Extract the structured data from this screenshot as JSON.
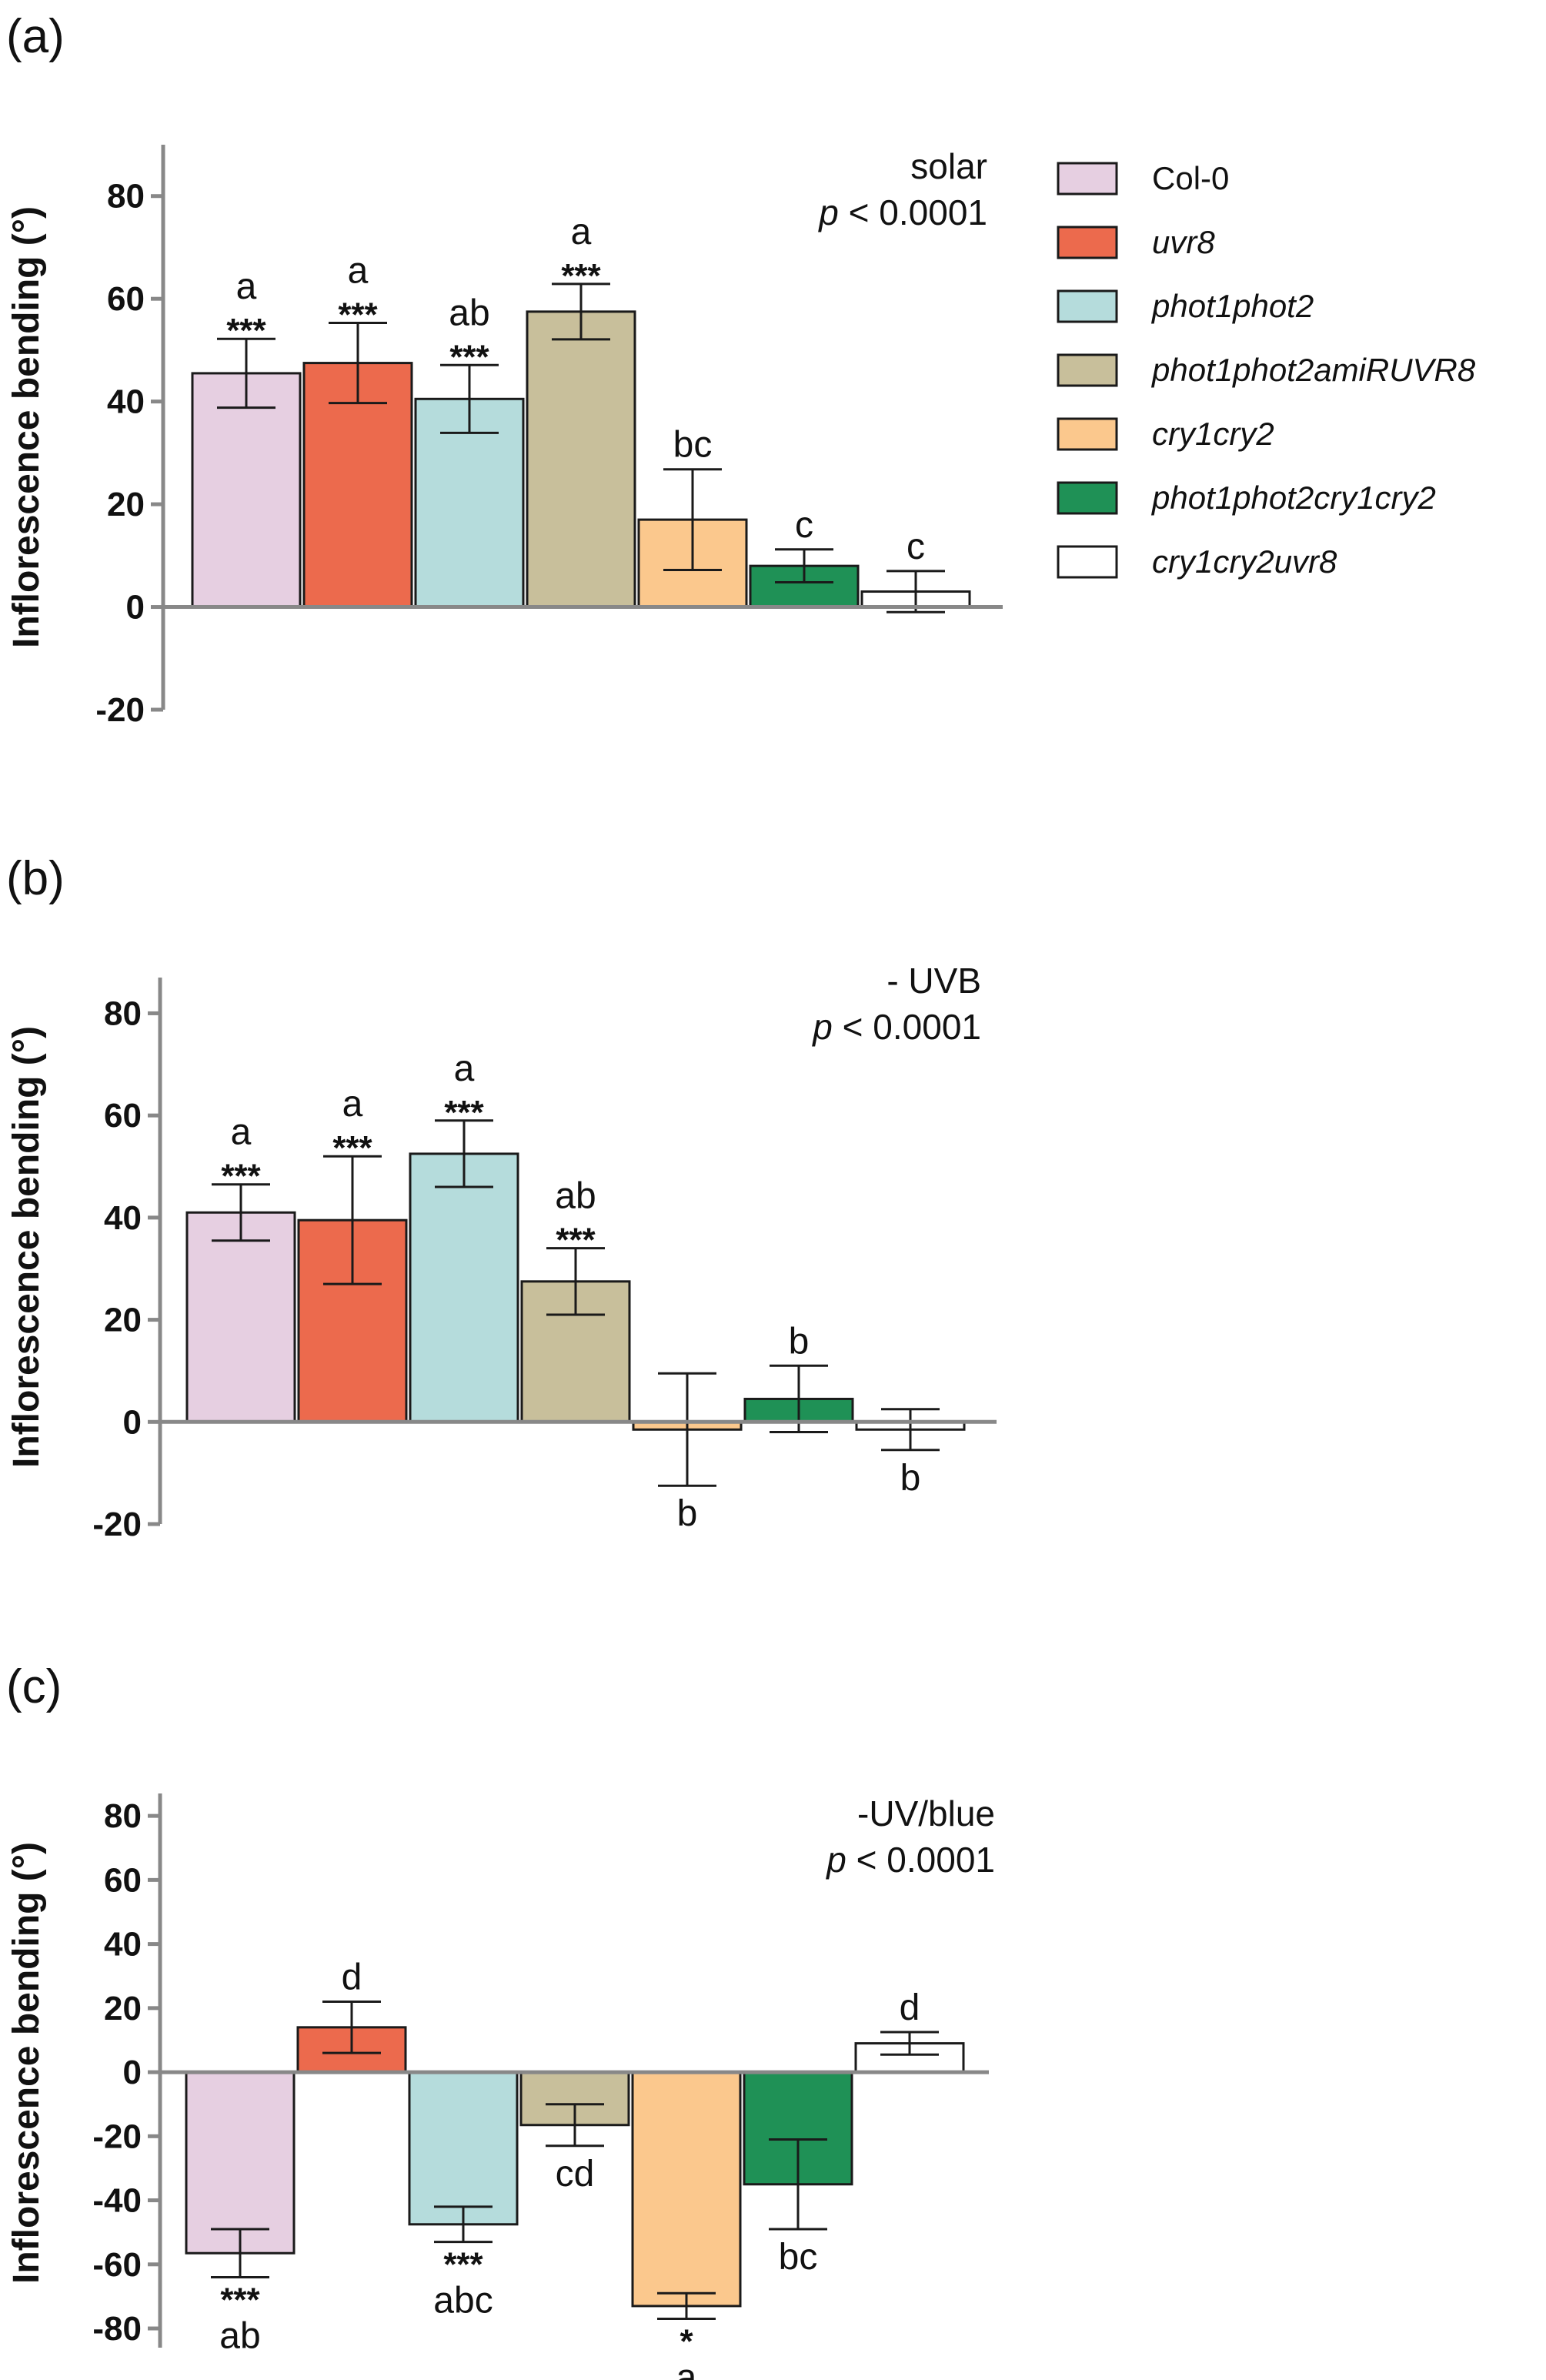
{
  "colors": {
    "Col-0": "#e6cfe1",
    "uvr8": "#ec6a4d",
    "phot1phot2": "#b5dcdc",
    "phot1phot2amiRUVR8": "#c8bf9b",
    "cry1cry2": "#fbc88d",
    "phot1phot2cry1cry2": "#1f9156",
    "cry1cry2uvr8": "#ffffff",
    "axis": "#888888"
  },
  "legend": {
    "entries": [
      {
        "name": "Col-0",
        "italic": false
      },
      {
        "name": "uvr8",
        "italic": true
      },
      {
        "name": "phot1phot2",
        "italic": true
      },
      {
        "name": "phot1phot2amiRUVR8",
        "italic": true
      },
      {
        "name": "cry1cry2",
        "italic": true
      },
      {
        "name": "phot1phot2cry1cry2",
        "italic": true
      },
      {
        "name": "cry1cry2uvr8",
        "italic": true
      }
    ]
  },
  "chart_data": [
    {
      "type": "bar",
      "panel_label": "(a)",
      "condition": "solar",
      "p_prefix": "p",
      "p_rest": " < 0.0001",
      "ylabel": "Inflorescence bending (°)",
      "ylim": [
        -20,
        90
      ],
      "yticks": [
        80,
        60,
        40,
        20,
        0,
        -20
      ],
      "categories": [
        "Col-0",
        "uvr8",
        "phot1phot2",
        "phot1phot2amiRUVR8",
        "cry1cry2",
        "phot1phot2cry1cry2",
        "cry1cry2uvr8"
      ],
      "values": [
        45.5,
        47.5,
        40.5,
        57.5,
        17.0,
        8.0,
        3.0
      ],
      "errors": [
        6.7,
        7.8,
        6.6,
        5.4,
        9.8,
        3.2,
        4.0
      ],
      "stars": [
        "***",
        "***",
        "***",
        "***",
        "",
        "",
        ""
      ],
      "letters": [
        "a",
        "a",
        "ab",
        "a",
        "bc",
        "c",
        "c"
      ]
    },
    {
      "type": "bar",
      "panel_label": "(b)",
      "condition": "- UVB",
      "p_prefix": "p",
      "p_rest": " < 0.0001",
      "ylabel": "Inflorescence bending (°)",
      "ylim": [
        -20,
        90
      ],
      "yticks": [
        80,
        60,
        40,
        20,
        0,
        -20
      ],
      "categories": [
        "Col-0",
        "uvr8",
        "phot1phot2",
        "phot1phot2amiRUVR8",
        "cry1cry2",
        "phot1phot2cry1cry2",
        "cry1cry2uvr8"
      ],
      "values": [
        41.0,
        39.5,
        52.5,
        27.5,
        -1.5,
        4.5,
        -1.5
      ],
      "errors": [
        5.5,
        12.5,
        6.5,
        6.5,
        11.0,
        6.5,
        4.0
      ],
      "stars": [
        "***",
        "***",
        "***",
        "***",
        "",
        "",
        ""
      ],
      "letters": [
        "a",
        "a",
        "a",
        "ab",
        "b",
        "b",
        "b"
      ]
    },
    {
      "type": "bar",
      "panel_label": "(c)",
      "condition": "-UV/blue",
      "p_prefix": "p",
      "p_rest": " < 0.0001",
      "ylabel": "Inflorescence bending (°)",
      "ylim": [
        -90,
        90
      ],
      "yticks": [
        80,
        60,
        40,
        20,
        0,
        -20,
        -40,
        -60,
        -80
      ],
      "categories": [
        "Col-0",
        "uvr8",
        "phot1phot2",
        "phot1phot2amiRUVR8",
        "cry1cry2",
        "phot1phot2cry1cry2",
        "cry1cry2uvr8"
      ],
      "values": [
        -56.5,
        14.0,
        -47.5,
        -16.5,
        -73.0,
        -35.0,
        9.0
      ],
      "errors": [
        7.5,
        8.0,
        5.5,
        6.5,
        4.0,
        14.0,
        3.5
      ],
      "stars": [
        "***",
        "",
        "***",
        "",
        "*",
        "",
        ""
      ],
      "letters": [
        "ab",
        "d",
        "abc",
        "cd",
        "a",
        "bc",
        "d"
      ]
    }
  ]
}
